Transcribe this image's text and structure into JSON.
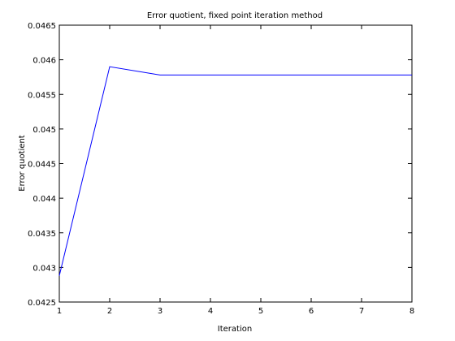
{
  "chart_data": {
    "type": "line",
    "title": "Error quotient, fixed point iteration method",
    "xlabel": "Iteration",
    "ylabel": "Error quotient",
    "xlim": [
      1,
      8
    ],
    "ylim": [
      0.0425,
      0.0465
    ],
    "x_ticks": [
      "1",
      "2",
      "3",
      "4",
      "5",
      "6",
      "7",
      "8"
    ],
    "y_ticks": [
      "0.0425",
      "0.043",
      "0.0435",
      "0.044",
      "0.0445",
      "0.045",
      "0.0455",
      "0.046",
      "0.0465"
    ],
    "grid": false,
    "series": [
      {
        "color": "#0000ff",
        "x": [
          1,
          2,
          3,
          4,
          5,
          6,
          7,
          8
        ],
        "values": [
          0.04288,
          0.0459,
          0.04578,
          0.04578,
          0.04578,
          0.04578,
          0.04578,
          0.04578
        ]
      }
    ]
  }
}
